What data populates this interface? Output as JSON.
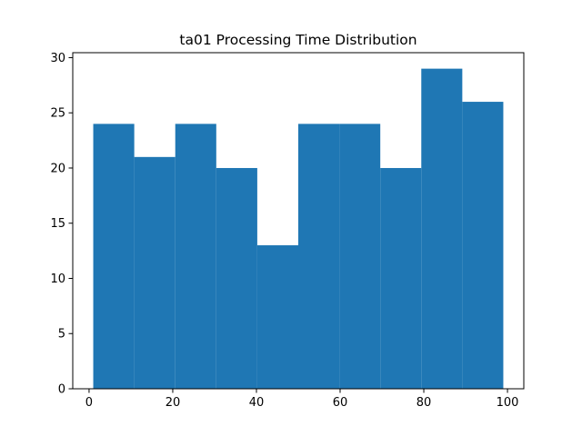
{
  "chart_data": {
    "type": "bar",
    "subtype": "histogram",
    "title": "ta01 Processing Time Distribution",
    "xlabel": "",
    "ylabel": "",
    "bins": [
      {
        "x0": 1,
        "x1": 10.8,
        "count": 24
      },
      {
        "x0": 10.8,
        "x1": 20.6,
        "count": 21
      },
      {
        "x0": 20.6,
        "x1": 30.4,
        "count": 24
      },
      {
        "x0": 30.4,
        "x1": 40.2,
        "count": 20
      },
      {
        "x0": 40.2,
        "x1": 50.0,
        "count": 13
      },
      {
        "x0": 50.0,
        "x1": 59.8,
        "count": 24
      },
      {
        "x0": 59.8,
        "x1": 69.6,
        "count": 24
      },
      {
        "x0": 69.6,
        "x1": 79.4,
        "count": 20
      },
      {
        "x0": 79.4,
        "x1": 89.2,
        "count": 29
      },
      {
        "x0": 89.2,
        "x1": 99,
        "count": 26
      }
    ],
    "xlim": [
      -3.9,
      103.9
    ],
    "ylim": [
      0,
      30.45
    ],
    "x_ticks": [
      0,
      20,
      40,
      60,
      80,
      100
    ],
    "y_ticks": [
      0,
      5,
      10,
      15,
      20,
      25,
      30
    ],
    "bar_color": "#1f77b4",
    "grid": false,
    "legend": "none"
  }
}
